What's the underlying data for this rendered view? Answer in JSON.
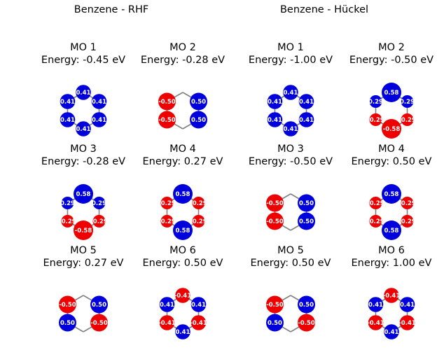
{
  "figure": {
    "titles": [
      "Benzene - RHF",
      "Benzene - Hückel"
    ]
  },
  "colors": {
    "positive": "#0000dd",
    "negative": "#ee0000",
    "bond": "#808080",
    "label": "#ffffff"
  },
  "panels": [
    {
      "method": "RHF",
      "mo_title": "MO 1",
      "energy_text": "Energy: -0.45 eV",
      "coefficients": [
        0.41,
        0.41,
        0.41,
        0.41,
        0.41,
        0.41
      ],
      "labels": [
        "0.41",
        "0.41",
        "0.41",
        "0.41",
        "0.41",
        "0.41"
      ]
    },
    {
      "method": "RHF",
      "mo_title": "MO 2",
      "energy_text": "Energy: -0.28 eV",
      "coefficients": [
        0.0,
        0.5,
        0.5,
        0.0,
        -0.5,
        -0.5
      ],
      "labels": [
        "",
        "0.50",
        "0.50",
        "",
        "-0.50",
        "-0.50"
      ]
    },
    {
      "method": "Hückel",
      "mo_title": "MO 1",
      "energy_text": "Energy: -1.00 eV",
      "coefficients": [
        0.41,
        0.41,
        0.41,
        0.41,
        0.41,
        0.41
      ],
      "labels": [
        "0.41",
        "0.41",
        "0.41",
        "0.41",
        "0.41",
        "0.41"
      ]
    },
    {
      "method": "Hückel",
      "mo_title": "MO 2",
      "energy_text": "Energy: -0.50 eV",
      "coefficients": [
        0.58,
        0.29,
        -0.29,
        -0.58,
        -0.29,
        0.29
      ],
      "labels": [
        "0.58",
        "0.29",
        "-0.29",
        "-0.58",
        "-0.29",
        "0.29"
      ]
    },
    {
      "method": "RHF",
      "mo_title": "MO 3",
      "energy_text": "Energy: -0.28 eV",
      "coefficients": [
        0.58,
        0.29,
        -0.29,
        -0.58,
        -0.29,
        0.29
      ],
      "labels": [
        "0.58",
        "0.29",
        "-0.29",
        "-0.58",
        "-0.29",
        "0.29"
      ]
    },
    {
      "method": "RHF",
      "mo_title": "MO 4",
      "energy_text": "Energy: 0.27 eV",
      "coefficients": [
        0.58,
        -0.29,
        -0.29,
        0.58,
        -0.29,
        -0.29
      ],
      "labels": [
        "0.58",
        "-0.29",
        "-0.29",
        "0.58",
        "-0.29",
        "-0.29"
      ]
    },
    {
      "method": "Hückel",
      "mo_title": "MO 3",
      "energy_text": "Energy: -0.50 eV",
      "coefficients": [
        0.0,
        0.5,
        0.5,
        0.0,
        -0.5,
        -0.5
      ],
      "labels": [
        "",
        "0.50",
        "0.50",
        "",
        "-0.50",
        "-0.50"
      ]
    },
    {
      "method": "Hückel",
      "mo_title": "MO 4",
      "energy_text": "Energy: 0.50 eV",
      "coefficients": [
        0.58,
        -0.29,
        -0.29,
        0.58,
        -0.29,
        -0.29
      ],
      "labels": [
        "0.58",
        "-0.29",
        "-0.29",
        "0.58",
        "-0.29",
        "-0.29"
      ]
    },
    {
      "method": "RHF",
      "mo_title": "MO 5",
      "energy_text": "Energy: 0.27 eV",
      "coefficients": [
        0.0,
        0.5,
        -0.5,
        0.0,
        0.5,
        -0.5
      ],
      "labels": [
        "",
        "0.50",
        "-0.50",
        "",
        "0.50",
        "-0.50"
      ]
    },
    {
      "method": "RHF",
      "mo_title": "MO 6",
      "energy_text": "Energy: 0.50 eV",
      "coefficients": [
        -0.41,
        0.41,
        -0.41,
        0.41,
        -0.41,
        0.41
      ],
      "labels": [
        "-0.41",
        "0.41",
        "-0.41",
        "0.41",
        "-0.41",
        "0.41"
      ]
    },
    {
      "method": "Hückel",
      "mo_title": "MO 5",
      "energy_text": "Energy: 0.50 eV",
      "coefficients": [
        0.0,
        0.5,
        -0.5,
        0.0,
        0.5,
        -0.5
      ],
      "labels": [
        "",
        "0.50",
        "-0.50",
        "",
        "0.50",
        "-0.50"
      ]
    },
    {
      "method": "Hückel",
      "mo_title": "MO 6",
      "energy_text": "Energy: 1.00 eV",
      "coefficients": [
        -0.41,
        0.41,
        -0.41,
        0.41,
        -0.41,
        0.41
      ],
      "labels": [
        "-0.41",
        "0.41",
        "-0.41",
        "0.41",
        "-0.41",
        "0.41"
      ]
    }
  ]
}
